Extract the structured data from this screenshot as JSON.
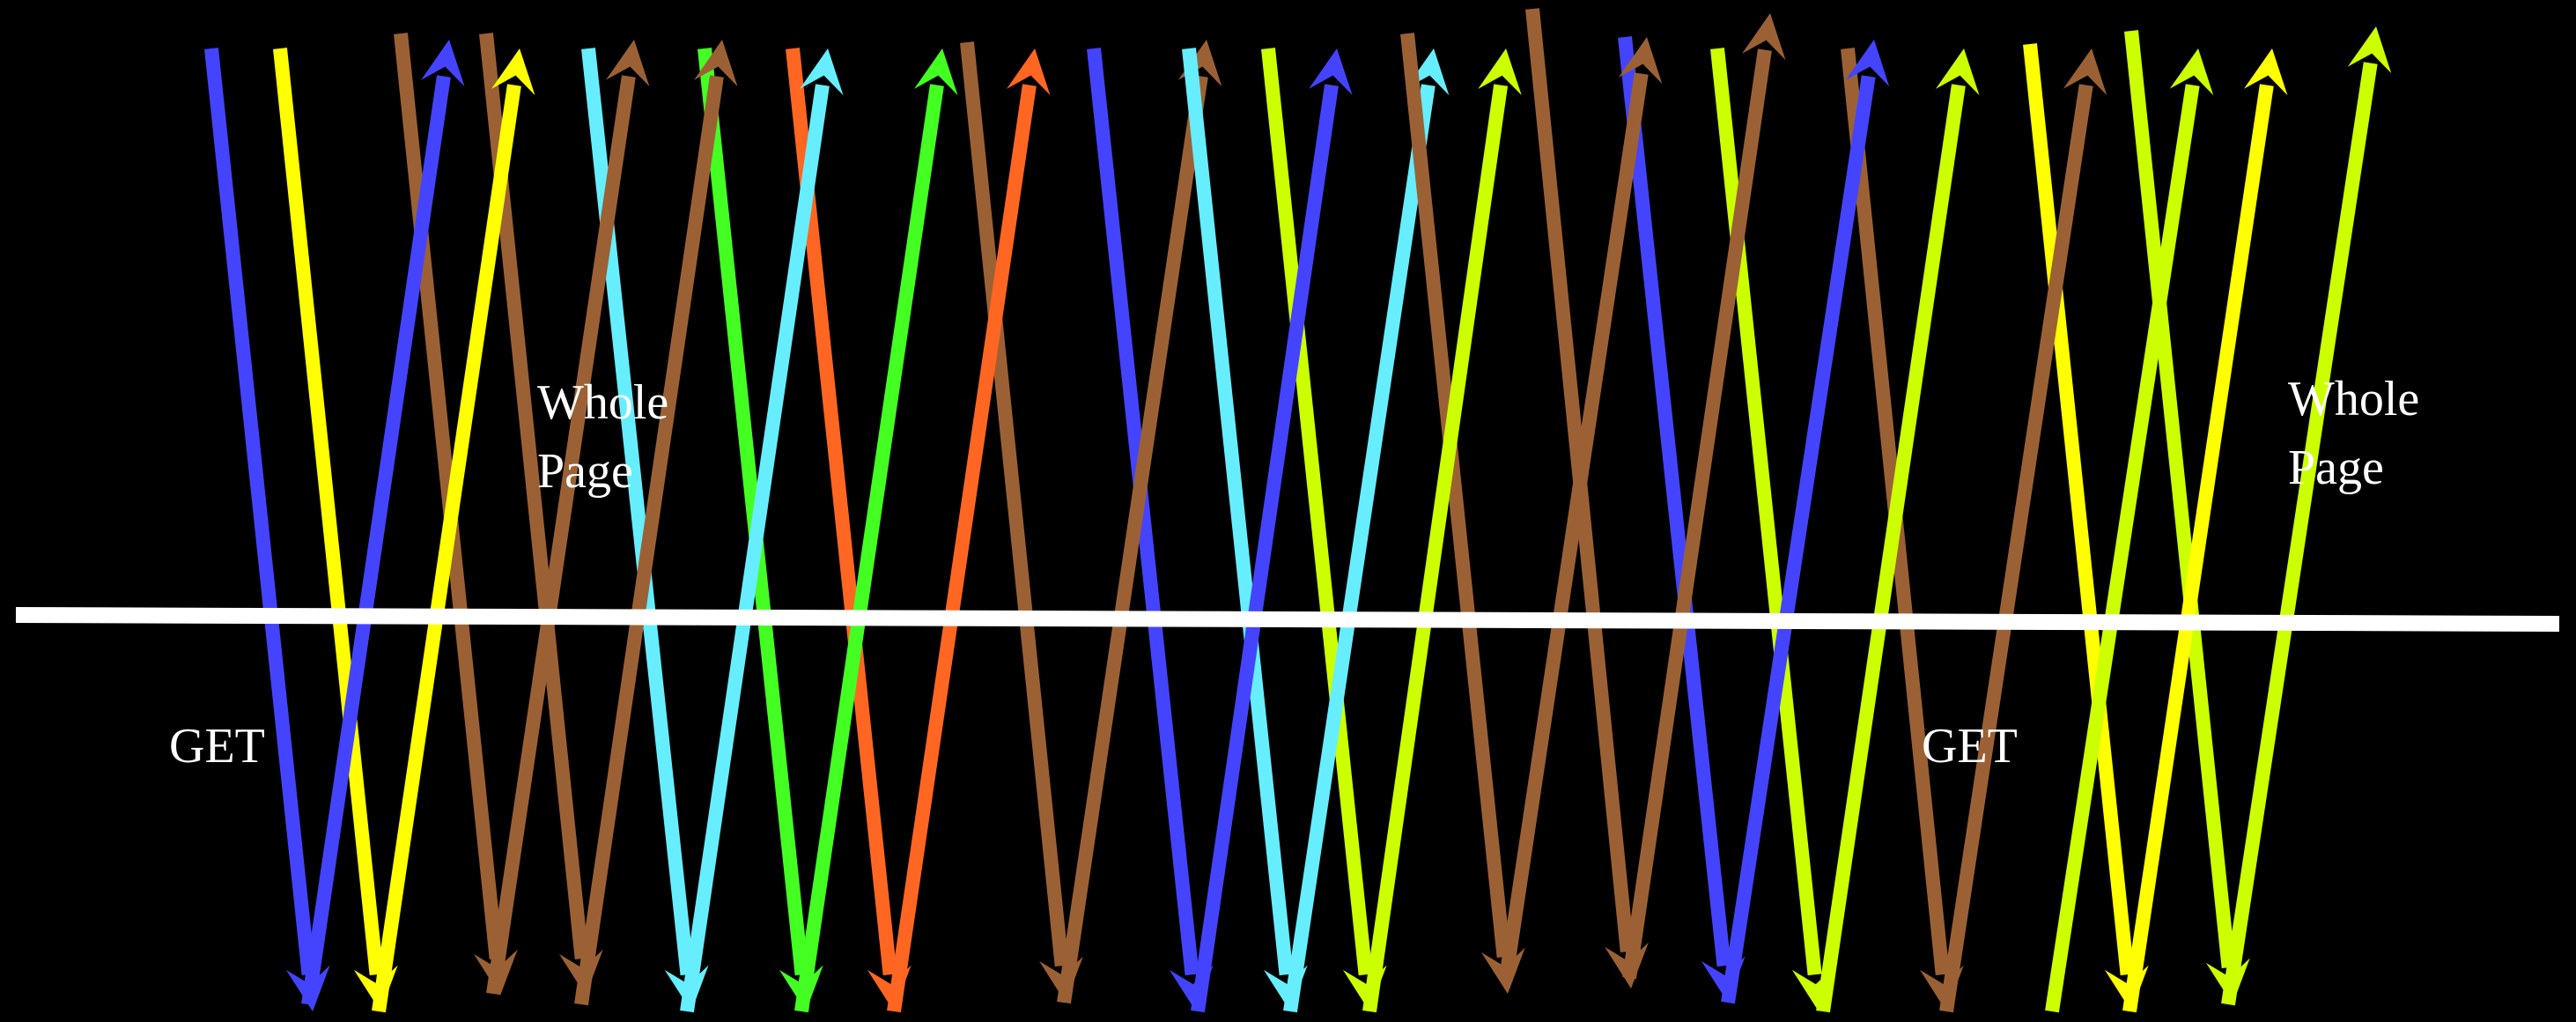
{
  "labels": {
    "get_left": "GET",
    "get_right": "GET",
    "page_left": "Whole Page",
    "page_right": "Whole Page"
  },
  "colors": {
    "background": "#000000",
    "boundary_line": "#ffffff",
    "label_text": "#ffffff",
    "blue": "#4444ff",
    "yellow": "#ffff00",
    "brown": "#9b6134",
    "cyan": "#66eeff",
    "green": "#44ff22",
    "orange": "#ff6622",
    "lime": "#ccff00"
  },
  "arrows": [
    {
      "color": "blue",
      "direction": "down"
    },
    {
      "color": "yellow",
      "direction": "down"
    },
    {
      "color": "brown",
      "direction": "down"
    },
    {
      "color": "blue",
      "direction": "up"
    },
    {
      "color": "brown",
      "direction": "down"
    },
    {
      "color": "yellow",
      "direction": "up"
    },
    {
      "color": "cyan",
      "direction": "down"
    },
    {
      "color": "brown",
      "direction": "up"
    },
    {
      "color": "green",
      "direction": "down"
    },
    {
      "color": "brown",
      "direction": "up"
    },
    {
      "color": "orange",
      "direction": "down"
    },
    {
      "color": "cyan",
      "direction": "up"
    },
    {
      "color": "green",
      "direction": "up"
    },
    {
      "color": "brown",
      "direction": "down"
    },
    {
      "color": "orange",
      "direction": "up"
    },
    {
      "color": "blue",
      "direction": "down"
    },
    {
      "color": "brown",
      "direction": "up"
    },
    {
      "color": "cyan",
      "direction": "down"
    },
    {
      "color": "lime",
      "direction": "down"
    },
    {
      "color": "blue",
      "direction": "up"
    },
    {
      "color": "cyan",
      "direction": "up"
    },
    {
      "color": "brown",
      "direction": "down"
    },
    {
      "color": "lime",
      "direction": "up"
    },
    {
      "color": "brown",
      "direction": "down"
    },
    {
      "color": "blue",
      "direction": "down"
    },
    {
      "color": "brown",
      "direction": "up"
    },
    {
      "color": "lime",
      "direction": "down"
    },
    {
      "color": "brown",
      "direction": "up"
    },
    {
      "color": "brown",
      "direction": "down"
    },
    {
      "color": "blue",
      "direction": "up"
    },
    {
      "color": "lime",
      "direction": "up"
    },
    {
      "color": "yellow",
      "direction": "down"
    },
    {
      "color": "brown",
      "direction": "up"
    },
    {
      "color": "lime",
      "direction": "down"
    },
    {
      "color": "lime",
      "direction": "up"
    },
    {
      "color": "yellow",
      "direction": "up"
    },
    {
      "color": "lime",
      "direction": "up"
    }
  ]
}
